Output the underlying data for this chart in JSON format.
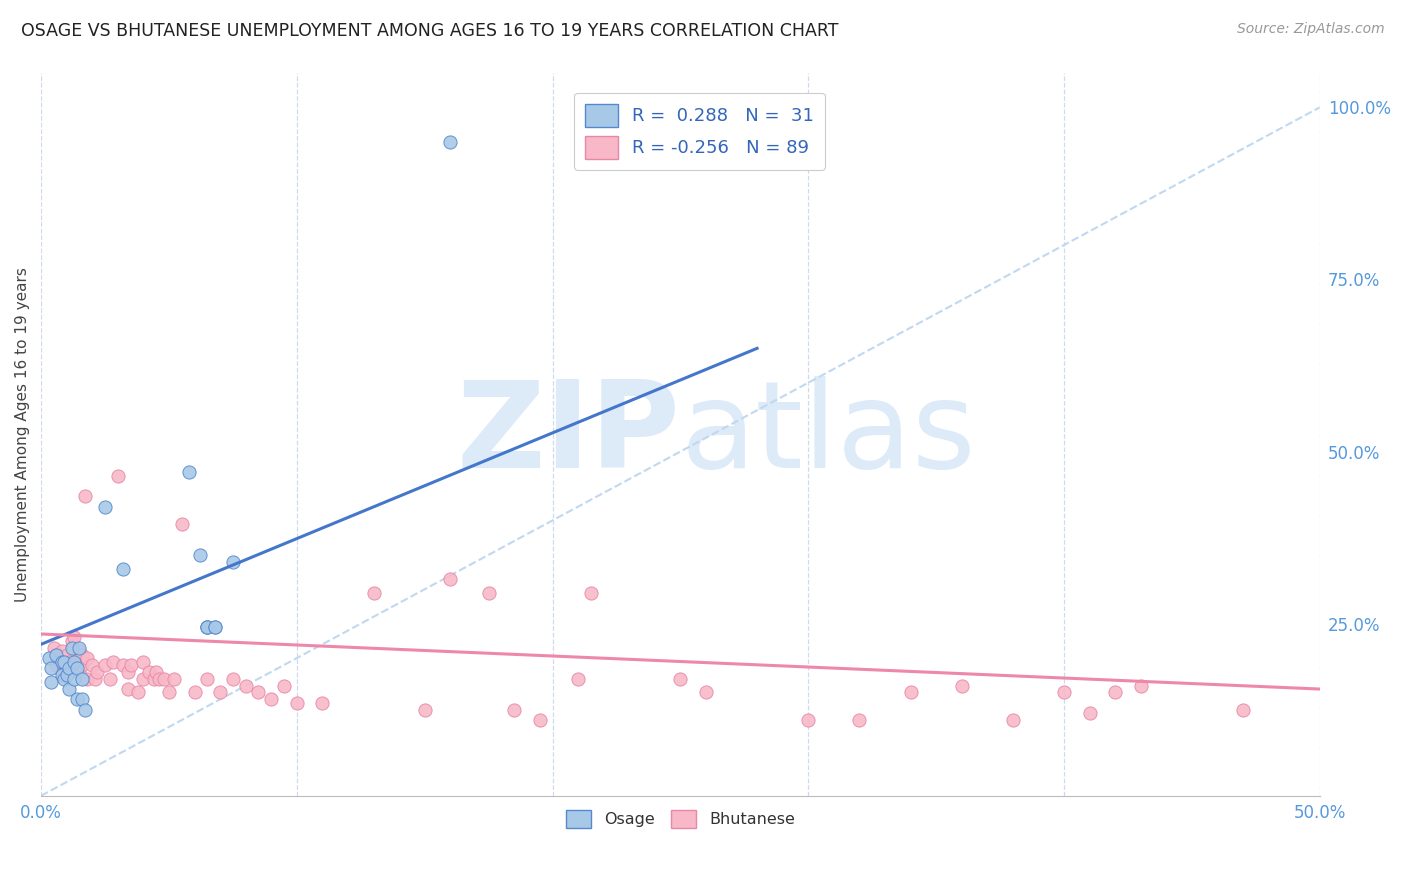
{
  "title": "OSAGE VS BHUTANESE UNEMPLOYMENT AMONG AGES 16 TO 19 YEARS CORRELATION CHART",
  "source": "Source: ZipAtlas.com",
  "ylabel": "Unemployment Among Ages 16 to 19 years",
  "xlim": [
    0.0,
    0.5
  ],
  "ylim": [
    0.0,
    1.05
  ],
  "x_tick_positions": [
    0.0,
    0.1,
    0.2,
    0.3,
    0.4,
    0.5
  ],
  "x_tick_labels": [
    "0.0%",
    "",
    "",
    "",
    "",
    "50.0%"
  ],
  "y_tick_positions": [
    0.0,
    0.25,
    0.5,
    0.75,
    1.0
  ],
  "y_tick_labels": [
    "",
    "25.0%",
    "50.0%",
    "75.0%",
    "100.0%"
  ],
  "osage_color": "#a8c8e8",
  "bhutanese_color": "#f8b8c8",
  "osage_edge_color": "#5588cc",
  "bhutanese_edge_color": "#e888a8",
  "osage_line_color": "#4477cc",
  "bhutanese_line_color": "#ee88aa",
  "diagonal_color": "#c0d8f0",
  "osage_line_x": [
    0.0,
    0.28
  ],
  "osage_line_y": [
    0.22,
    0.65
  ],
  "bhutanese_line_x": [
    0.0,
    0.5
  ],
  "bhutanese_line_y": [
    0.235,
    0.155
  ],
  "osage_x": [
    0.003,
    0.004,
    0.004,
    0.006,
    0.008,
    0.008,
    0.009,
    0.009,
    0.01,
    0.011,
    0.011,
    0.012,
    0.013,
    0.013,
    0.014,
    0.014,
    0.015,
    0.016,
    0.016,
    0.017,
    0.065,
    0.065,
    0.065,
    0.068,
    0.068
  ],
  "osage_y": [
    0.2,
    0.185,
    0.165,
    0.205,
    0.195,
    0.175,
    0.17,
    0.195,
    0.175,
    0.155,
    0.185,
    0.215,
    0.195,
    0.17,
    0.14,
    0.185,
    0.215,
    0.17,
    0.14,
    0.125,
    0.245,
    0.245,
    0.245,
    0.245,
    0.245
  ],
  "osage_x2": [
    0.025,
    0.032,
    0.058,
    0.062,
    0.075,
    0.16
  ],
  "osage_y2": [
    0.42,
    0.33,
    0.47,
    0.35,
    0.34,
    0.95
  ],
  "bhutanese_x": [
    0.005,
    0.006,
    0.006,
    0.007,
    0.007,
    0.008,
    0.008,
    0.009,
    0.009,
    0.009,
    0.01,
    0.01,
    0.011,
    0.011,
    0.012,
    0.012,
    0.013,
    0.013,
    0.014,
    0.015,
    0.015,
    0.016,
    0.016,
    0.017,
    0.018,
    0.018,
    0.02,
    0.021,
    0.022,
    0.025,
    0.027,
    0.028,
    0.03,
    0.032,
    0.034,
    0.034,
    0.035,
    0.038,
    0.04,
    0.04,
    0.042,
    0.044,
    0.045,
    0.046,
    0.048,
    0.05,
    0.052,
    0.055,
    0.06,
    0.065,
    0.07,
    0.075,
    0.08,
    0.085,
    0.09,
    0.095,
    0.1,
    0.11,
    0.13,
    0.15,
    0.16,
    0.175,
    0.185,
    0.195,
    0.21,
    0.215,
    0.25,
    0.26,
    0.3,
    0.32,
    0.34,
    0.36,
    0.38,
    0.4,
    0.41,
    0.42,
    0.43,
    0.47
  ],
  "bhutanese_y": [
    0.215,
    0.205,
    0.19,
    0.205,
    0.195,
    0.18,
    0.21,
    0.2,
    0.19,
    0.175,
    0.205,
    0.185,
    0.195,
    0.18,
    0.19,
    0.225,
    0.185,
    0.23,
    0.19,
    0.21,
    0.18,
    0.19,
    0.205,
    0.435,
    0.17,
    0.2,
    0.19,
    0.17,
    0.18,
    0.19,
    0.17,
    0.195,
    0.465,
    0.19,
    0.18,
    0.155,
    0.19,
    0.15,
    0.195,
    0.17,
    0.18,
    0.17,
    0.18,
    0.17,
    0.17,
    0.15,
    0.17,
    0.395,
    0.15,
    0.17,
    0.15,
    0.17,
    0.16,
    0.15,
    0.14,
    0.16,
    0.135,
    0.135,
    0.295,
    0.125,
    0.315,
    0.295,
    0.125,
    0.11,
    0.17,
    0.295,
    0.17,
    0.15,
    0.11,
    0.11,
    0.15,
    0.16,
    0.11,
    0.15,
    0.12,
    0.15,
    0.16,
    0.125
  ],
  "background_color": "#ffffff",
  "grid_color": "#c8d8ec",
  "watermark_zip": "ZIP",
  "watermark_atlas": "atlas",
  "watermark_color": "#ddeaf8"
}
